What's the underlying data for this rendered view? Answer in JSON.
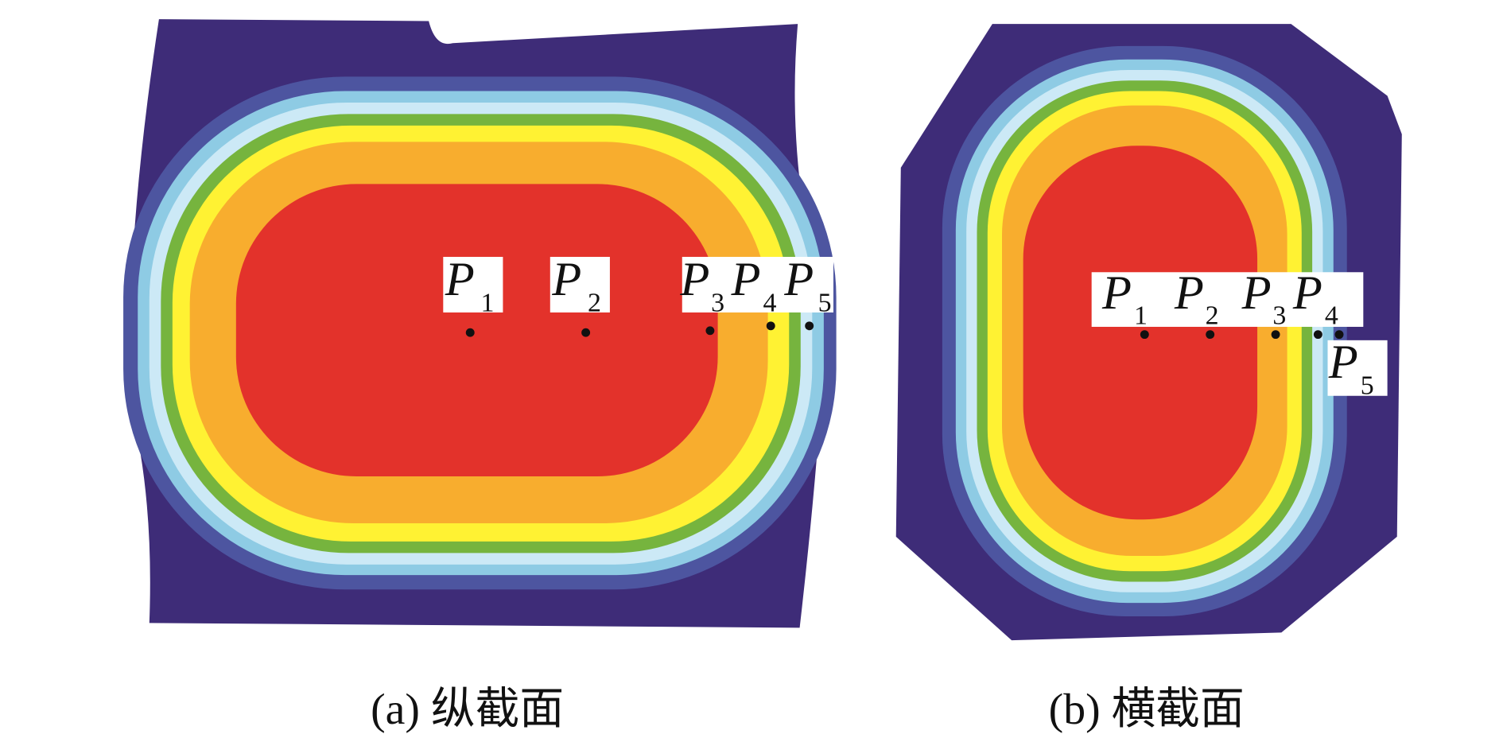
{
  "panels": [
    {
      "caption": "(a) 纵截面",
      "points": [
        {
          "letter": "P",
          "subscript": "1"
        },
        {
          "letter": "P",
          "subscript": "2"
        },
        {
          "letter": "P",
          "subscript": "3"
        },
        {
          "letter": "P",
          "subscript": "4"
        },
        {
          "letter": "P",
          "subscript": "5"
        }
      ]
    },
    {
      "caption": "(b) 横截面",
      "points": [
        {
          "letter": "P",
          "subscript": "1"
        },
        {
          "letter": "P",
          "subscript": "2"
        },
        {
          "letter": "P",
          "subscript": "3"
        },
        {
          "letter": "P",
          "subscript": "4"
        },
        {
          "letter": "P",
          "subscript": "5"
        }
      ]
    }
  ]
}
